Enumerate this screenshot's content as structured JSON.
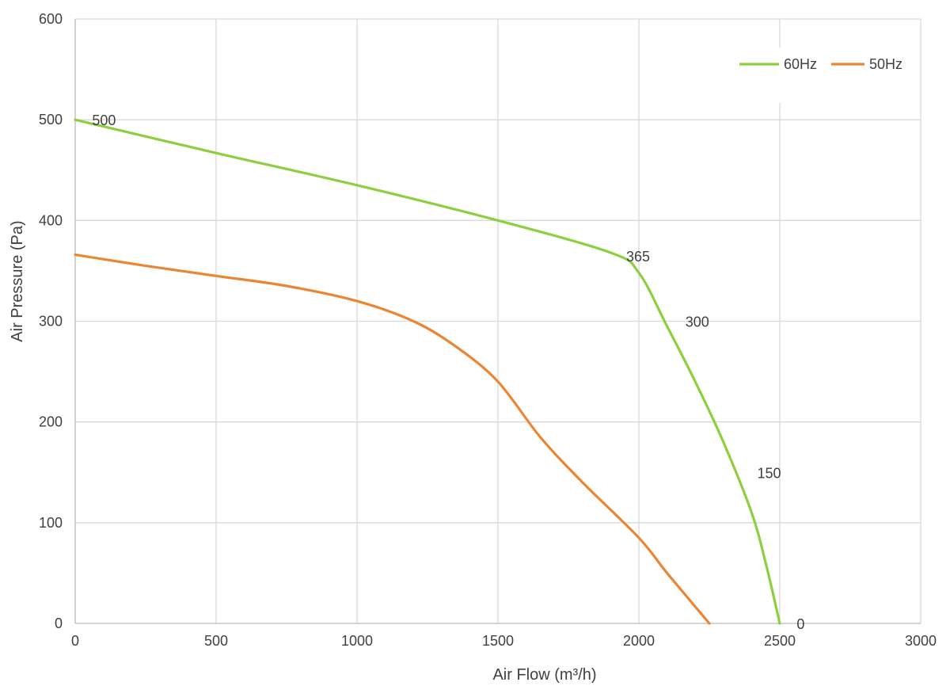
{
  "chart_data": {
    "type": "line",
    "xlabel": "Air Flow  (m³/h)",
    "ylabel": "Air Pressure  (Pa)",
    "xlim": [
      0,
      3000
    ],
    "ylim": [
      0,
      600
    ],
    "x_ticks": [
      0,
      500,
      1000,
      1500,
      2000,
      2500,
      3000
    ],
    "y_ticks": [
      0,
      100,
      200,
      300,
      400,
      500,
      600
    ],
    "x_tick_labels": [
      "0",
      "500",
      "1000",
      "1500",
      "2000",
      "2500",
      "3000"
    ],
    "y_tick_labels": [
      "0",
      "100",
      "200",
      "300",
      "400",
      "500",
      "600"
    ],
    "grid": true,
    "legend_position": "top-right",
    "series": [
      {
        "name": "60Hz",
        "color": "#8dcf3f",
        "x": [
          0,
          500,
          1000,
          1500,
          1900,
          2000,
          2100,
          2200,
          2300,
          2400,
          2450,
          2500
        ],
        "y": [
          500,
          467,
          435,
          400,
          368,
          348,
          295,
          240,
          180,
          110,
          60,
          0
        ]
      },
      {
        "name": "50Hz",
        "color": "#ea8633",
        "x": [
          0,
          250,
          500,
          750,
          1000,
          1200,
          1350,
          1500,
          1650,
          1800,
          2000,
          2100,
          2250
        ],
        "y": [
          366,
          355,
          345,
          335,
          320,
          300,
          275,
          240,
          185,
          140,
          85,
          50,
          0
        ]
      }
    ],
    "annotations": [
      {
        "text": "500",
        "x": 60,
        "y": 500
      },
      {
        "text": "365",
        "x": 1955,
        "y": 365
      },
      {
        "text": "300",
        "x": 2165,
        "y": 300
      },
      {
        "text": "150",
        "x": 2420,
        "y": 150
      },
      {
        "text": "0",
        "x": 2560,
        "y": 0
      }
    ]
  }
}
